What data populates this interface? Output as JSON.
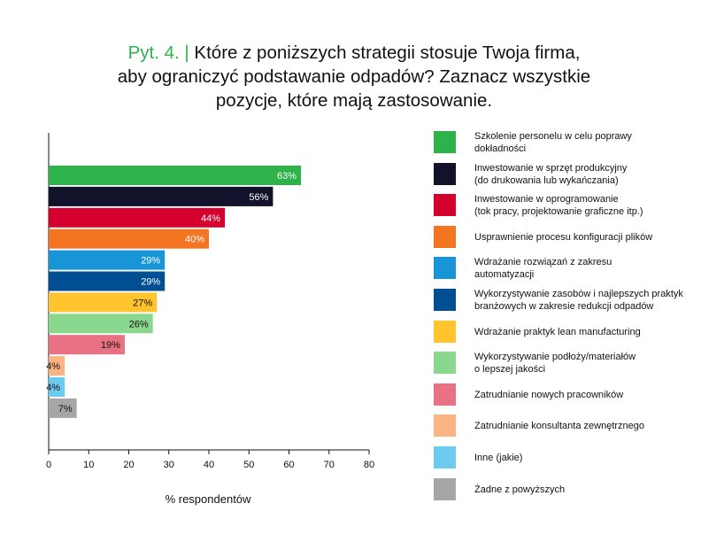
{
  "title": {
    "qnum": "Pyt. 4.",
    "sep": "|",
    "line1": "Które z poniższych strategii stosuje Twoja firma,",
    "line2": "aby ograniczyć podstawanie odpadów? Zaznacz wszystkie",
    "line3": "pozycje, które mają zastosowanie."
  },
  "chart_data": {
    "type": "bar",
    "orientation": "horizontal",
    "title": "Pyt. 4. | Które z poniższych strategii stosuje Twoja firma, aby ograniczyć podstawanie odpadów? Zaznacz wszystkie pozycje, które mają zastosowanie.",
    "xlabel": "% respondentów",
    "ylabel": "",
    "xlim": [
      0,
      80
    ],
    "xticks": [
      0,
      10,
      20,
      30,
      40,
      50,
      60,
      70,
      80
    ],
    "legend_position": "right",
    "categories": [
      "Szkolenie personelu w celu poprawy dokładności",
      "Inwestowanie w sprzęt produkcyjny (do drukowania lub wykańczania)",
      "Inwestowanie w oprogramowanie (tok pracy, projektowanie graficzne itp.)",
      "Usprawnienie procesu konfiguracji plików",
      "Wdrażanie rozwiązań z zakresu automatyzacji",
      "Wykorzystywanie zasobów i najlepszych praktyk branżowych w zakresie redukcji odpadów",
      "Wdrażanie praktyk lean manufacturing",
      "Wykorzystywanie podłoży/materiałów o lepszej jakości",
      "Zatrudnianie nowych pracowników",
      "Zatrudnianie konsultanta zewnętrznego",
      "Inne (jakie)",
      "Żadne z powyższych"
    ],
    "values": [
      63,
      56,
      44,
      40,
      29,
      29,
      27,
      26,
      19,
      4,
      4,
      7
    ],
    "value_labels": [
      "63%",
      "56%",
      "44%",
      "40%",
      "29%",
      "29%",
      "27%",
      "26%",
      "19%",
      "4%",
      "4%",
      "7%"
    ],
    "colors": [
      "#2db34a",
      "#12122a",
      "#d6002e",
      "#f47521",
      "#1795d6",
      "#004f92",
      "#ffc42e",
      "#8ad88e",
      "#e87283",
      "#fbb483",
      "#6ccbef",
      "#a6a6a6"
    ],
    "label_colors": [
      "#ffffff",
      "#ffffff",
      "#ffffff",
      "#ffffff",
      "#ffffff",
      "#ffffff",
      "#111111",
      "#111111",
      "#111111",
      "#111111",
      "#111111",
      "#111111"
    ]
  },
  "legend": {
    "items": [
      {
        "line1": "Szkolenie personelu w celu poprawy",
        "line2": "dokładności"
      },
      {
        "line1": "Inwestowanie w sprzęt produkcyjny",
        "line2": "(do drukowania lub wykańczania)"
      },
      {
        "line1": "Inwestowanie w oprogramowanie",
        "line2": "(tok pracy, projektowanie graficzne itp.)"
      },
      {
        "line1": "Usprawnienie procesu konfiguracji plików",
        "line2": ""
      },
      {
        "line1": "Wdrażanie rozwiązań z zakresu",
        "line2": "automatyzacji"
      },
      {
        "line1": "Wykorzystywanie zasobów i najlepszych praktyk",
        "line2": "branżowych w zakresie redukcji odpadów"
      },
      {
        "line1": "Wdrażanie praktyk lean manufacturing",
        "line2": ""
      },
      {
        "line1": "Wykorzystywanie podłoży/materiałów",
        "line2": "o lepszej jakości"
      },
      {
        "line1": "Zatrudnianie nowych pracowników",
        "line2": ""
      },
      {
        "line1": "Zatrudnianie konsultanta zewnętrznego",
        "line2": ""
      },
      {
        "line1": "Inne (jakie)",
        "line2": ""
      },
      {
        "line1": "Żadne z powyższych",
        "line2": ""
      }
    ]
  }
}
